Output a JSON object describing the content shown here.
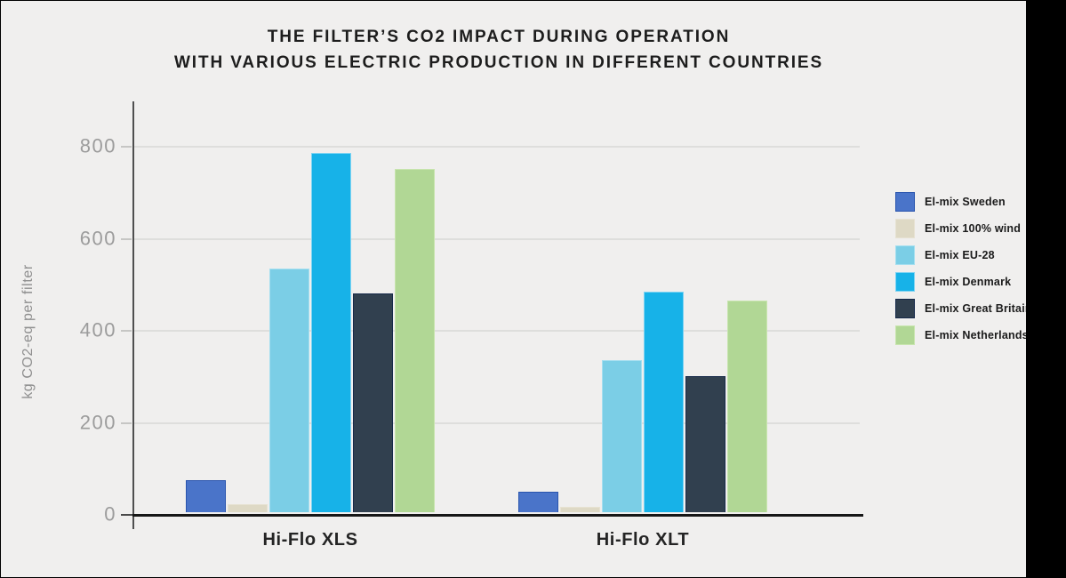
{
  "chart_data": {
    "type": "bar",
    "title": [
      "THE FILTER’S CO2 IMPACT DURING OPERATION",
      "WITH VARIOUS ELECTRIC PRODUCTION IN DIFFERENT COUNTRIES"
    ],
    "ylabel": "kg CO2-eq per filter",
    "categories": [
      "Hi-Flo XLS",
      "Hi-Flo XLT"
    ],
    "series": [
      {
        "name": "El-mix Sweden",
        "color": "#4a74c9",
        "border": "#2a55ae",
        "values": [
          70,
          45
        ]
      },
      {
        "name": "El-mix 100% wind",
        "color": "#ded9c5",
        "border": "#e7e2d2",
        "values": [
          18,
          12
        ]
      },
      {
        "name": "El-mix EU-28",
        "color": "#7bcee6",
        "border": "#a5dff0",
        "values": [
          530,
          330
        ]
      },
      {
        "name": "El-mix Denmark",
        "color": "#17b2e8",
        "border": "#7fd4f3",
        "values": [
          780,
          480
        ]
      },
      {
        "name": "El-mix Great Britain",
        "color": "#31404f",
        "border": "#16294a",
        "values": [
          475,
          295
        ]
      },
      {
        "name": "El-mix Netherlands",
        "color": "#b1d795",
        "border": "#c8e5ae",
        "values": [
          745,
          460
        ]
      }
    ],
    "yticks": [
      0,
      200,
      400,
      600,
      800
    ],
    "ylim": [
      0,
      890
    ],
    "grid": true,
    "legend_position": "right",
    "background_color": "#f0efee",
    "frame_color": "#000000"
  }
}
